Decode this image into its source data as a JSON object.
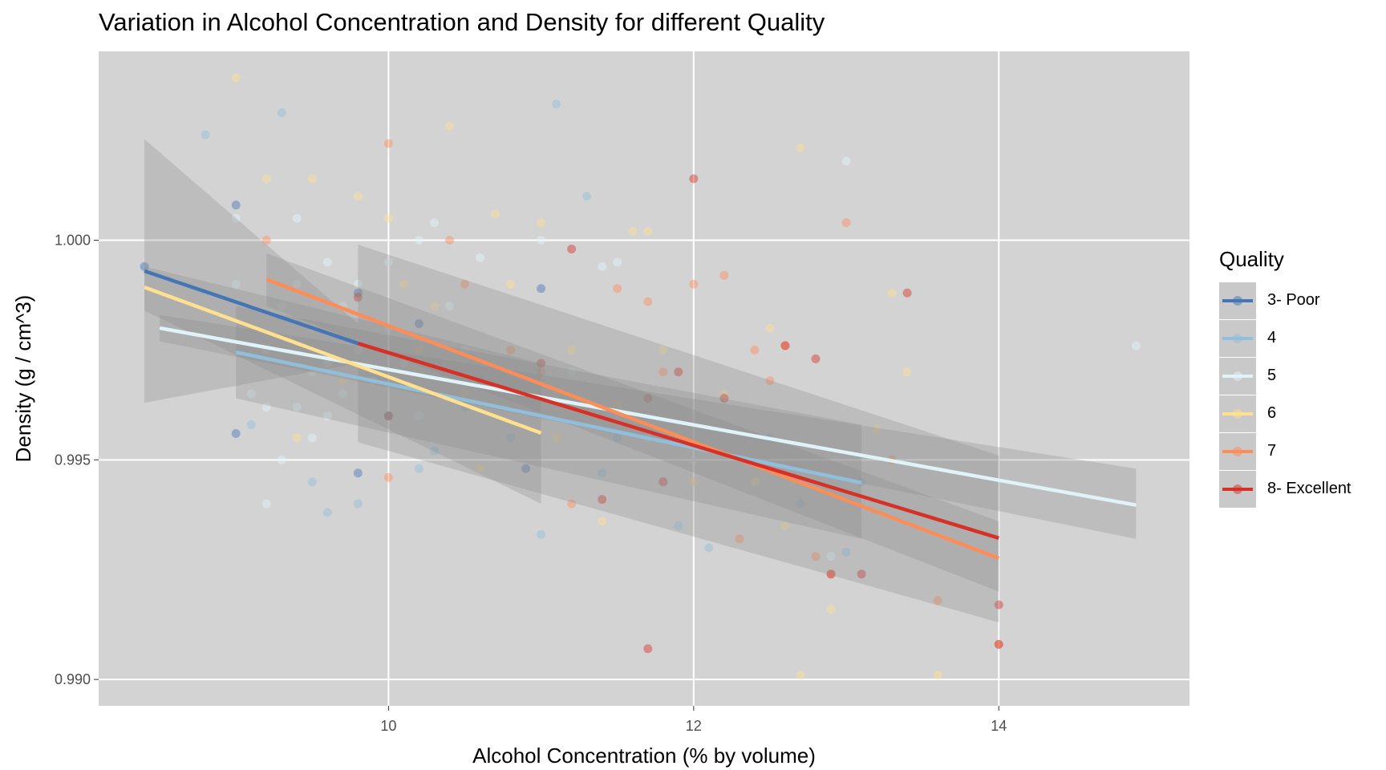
{
  "chart_data": {
    "type": "scatter",
    "title": "Variation in Alcohol Concentration and Density for different Quality",
    "xlabel": "Alcohol Concentration (% by volume)",
    "ylabel": "Density (g / cm^3)",
    "xlim": [
      8.1,
      15.25
    ],
    "ylim": [
      0.9894,
      1.0043
    ],
    "x_ticks": [
      10,
      12,
      14
    ],
    "x_tick_labels": [
      "10",
      "12",
      "14"
    ],
    "y_ticks": [
      0.99,
      0.995,
      1.0
    ],
    "y_tick_labels": [
      "0.990",
      "0.995",
      "1.000"
    ],
    "grid": true,
    "legend": {
      "title": "Quality",
      "position": "right"
    },
    "series": [
      {
        "name": "3- Poor",
        "color": "#4575b4",
        "points": [
          [
            8.4,
            0.9994
          ],
          [
            9.0,
            1.0008
          ],
          [
            9.0,
            0.9956
          ],
          [
            9.8,
            0.9947
          ],
          [
            10.0,
            0.996
          ],
          [
            10.9,
            0.9948
          ],
          [
            11.0,
            0.9989
          ],
          [
            9.8,
            0.9988
          ],
          [
            10.2,
            0.9981
          ]
        ],
        "fit": {
          "x": [
            8.4,
            9.8
          ],
          "y": [
            0.9993,
            0.99765
          ]
        },
        "band": {
          "x": [
            8.4,
            9.8
          ],
          "lower": [
            0.9963,
            0.9972
          ],
          "upper": [
            1.0023,
            0.9981
          ]
        }
      },
      {
        "name": "4",
        "color": "#91bfdb",
        "points": [
          [
            8.8,
            1.0024
          ],
          [
            9.1,
            0.9958
          ],
          [
            9.3,
            1.0029
          ],
          [
            9.5,
            0.9945
          ],
          [
            9.8,
            0.994
          ],
          [
            10.0,
            0.996
          ],
          [
            10.2,
            0.9948
          ],
          [
            10.5,
            0.9962
          ],
          [
            10.8,
            0.9955
          ],
          [
            11.0,
            0.9933
          ],
          [
            11.1,
            1.0031
          ],
          [
            11.3,
            1.001
          ],
          [
            11.4,
            0.9947
          ],
          [
            11.5,
            0.9955
          ],
          [
            11.9,
            0.9935
          ],
          [
            12.1,
            0.993
          ],
          [
            12.5,
            0.9955
          ],
          [
            12.7,
            0.994
          ],
          [
            13.0,
            0.9929
          ],
          [
            13.1,
            0.9945
          ],
          [
            10.3,
            0.9952
          ],
          [
            9.6,
            0.9938
          ],
          [
            10.6,
            0.9968
          ]
        ],
        "fit": {
          "x": [
            9.0,
            13.1
          ],
          "y": [
            0.99745,
            0.99448
          ]
        },
        "band": {
          "x": [
            9.0,
            13.1
          ],
          "lower": [
            0.9964,
            0.9932
          ],
          "upper": [
            0.9985,
            0.9958
          ]
        }
      },
      {
        "name": "5",
        "color": "#e0f3f8",
        "points": [
          [
            9.0,
            1.0005
          ],
          [
            9.1,
            0.9965
          ],
          [
            9.2,
            0.9962
          ],
          [
            9.2,
            0.9975
          ],
          [
            9.3,
            0.995
          ],
          [
            9.3,
            0.9985
          ],
          [
            9.4,
            0.9962
          ],
          [
            9.4,
            0.999
          ],
          [
            9.4,
            1.0005
          ],
          [
            9.5,
            0.9955
          ],
          [
            9.5,
            0.997
          ],
          [
            9.5,
            0.998
          ],
          [
            9.6,
            0.996
          ],
          [
            9.6,
            0.9972
          ],
          [
            9.6,
            0.9995
          ],
          [
            9.7,
            0.9965
          ],
          [
            9.7,
            0.9985
          ],
          [
            9.8,
            0.9975
          ],
          [
            9.8,
            0.999
          ],
          [
            9.9,
            0.9968
          ],
          [
            10.0,
            0.998
          ],
          [
            10.0,
            0.9995
          ],
          [
            10.1,
            0.9972
          ],
          [
            10.2,
            0.996
          ],
          [
            10.2,
            1.0
          ],
          [
            10.3,
            1.0004
          ],
          [
            10.4,
            0.9985
          ],
          [
            10.5,
            0.9975
          ],
          [
            10.6,
            0.9996
          ],
          [
            10.8,
            0.9965
          ],
          [
            11.0,
            1.0
          ],
          [
            11.2,
            0.997
          ],
          [
            11.4,
            0.9994
          ],
          [
            11.5,
            0.9995
          ],
          [
            11.7,
            0.9955
          ],
          [
            12.0,
            0.995
          ],
          [
            12.4,
            0.9945
          ],
          [
            12.9,
            0.9928
          ],
          [
            13.0,
            1.0018
          ],
          [
            14.9,
            0.9976
          ],
          [
            9.0,
            0.999
          ],
          [
            9.2,
            0.994
          ]
        ],
        "fit": {
          "x": [
            8.5,
            14.9
          ],
          "y": [
            0.998,
            0.99397
          ]
        },
        "band": {
          "x": [
            8.5,
            14.9
          ],
          "lower": [
            0.9977,
            0.9932
          ],
          "upper": [
            0.9983,
            0.9948
          ]
        }
      },
      {
        "name": "6",
        "color": "#fee090",
        "points": [
          [
            9.0,
            1.0037
          ],
          [
            9.2,
            1.0014
          ],
          [
            9.4,
            0.9955
          ],
          [
            9.5,
            1.0014
          ],
          [
            9.8,
            1.001
          ],
          [
            10.0,
            1.0005
          ],
          [
            10.1,
            0.999
          ],
          [
            10.2,
            0.9975
          ],
          [
            10.4,
            1.0026
          ],
          [
            10.5,
            0.9965
          ],
          [
            10.6,
            0.9948
          ],
          [
            10.7,
            1.0006
          ],
          [
            10.8,
            0.999
          ],
          [
            11.0,
            1.0004
          ],
          [
            11.2,
            0.9975
          ],
          [
            11.5,
            0.9962
          ],
          [
            11.6,
            1.0002
          ],
          [
            11.7,
            1.0002
          ],
          [
            11.8,
            0.9975
          ],
          [
            12.0,
            0.9945
          ],
          [
            12.2,
            0.9965
          ],
          [
            12.4,
            0.9945
          ],
          [
            12.5,
            0.998
          ],
          [
            12.6,
            0.9935
          ],
          [
            12.7,
            1.0021
          ],
          [
            12.9,
            0.9916
          ],
          [
            13.2,
            0.9957
          ],
          [
            13.3,
            0.9988
          ],
          [
            13.4,
            0.997
          ],
          [
            13.6,
            0.9901
          ],
          [
            12.7,
            0.9901
          ],
          [
            10.3,
            0.9985
          ],
          [
            9.7,
            0.9968
          ],
          [
            11.1,
            0.9955
          ],
          [
            11.4,
            0.9936
          ]
        ],
        "fit": {
          "x": [
            8.4,
            11.0
          ],
          "y": [
            0.99893,
            0.99561
          ]
        },
        "band": {
          "x": [
            8.4,
            11.0
          ],
          "lower": [
            0.9984,
            0.994
          ],
          "upper": [
            0.9994,
            0.9972
          ]
        }
      },
      {
        "name": "7",
        "color": "#fc8d59",
        "points": [
          [
            9.2,
            1.0
          ],
          [
            10.0,
            1.0022
          ],
          [
            10.4,
            1.0
          ],
          [
            10.5,
            0.999
          ],
          [
            10.8,
            0.9975
          ],
          [
            11.0,
            0.997
          ],
          [
            11.3,
            0.9962
          ],
          [
            11.5,
            0.9989
          ],
          [
            11.7,
            0.9986
          ],
          [
            11.8,
            0.997
          ],
          [
            12.0,
            0.999
          ],
          [
            12.2,
            0.9992
          ],
          [
            12.4,
            0.9975
          ],
          [
            12.5,
            0.9968
          ],
          [
            12.6,
            0.9976
          ],
          [
            12.8,
            0.9928
          ],
          [
            12.9,
            0.9924
          ],
          [
            13.0,
            1.0004
          ],
          [
            13.3,
            0.995
          ],
          [
            13.6,
            0.9918
          ],
          [
            14.0,
            0.9908
          ],
          [
            11.2,
            0.994
          ],
          [
            12.3,
            0.9932
          ],
          [
            10.0,
            0.9946
          ]
        ],
        "fit": {
          "x": [
            9.2,
            14.0
          ],
          "y": [
            0.99911,
            0.99276
          ]
        },
        "band": {
          "x": [
            9.2,
            14.0
          ],
          "lower": [
            0.9985,
            0.992
          ],
          "upper": [
            0.9997,
            0.9936
          ]
        }
      },
      {
        "name": "8- Excellent",
        "color": "#d73027",
        "points": [
          [
            9.8,
            0.9987
          ],
          [
            10.0,
            0.996
          ],
          [
            11.0,
            0.9972
          ],
          [
            11.2,
            0.9998
          ],
          [
            11.4,
            0.9941
          ],
          [
            11.7,
            0.9964
          ],
          [
            11.7,
            0.9907
          ],
          [
            11.8,
            0.9945
          ],
          [
            11.9,
            0.997
          ],
          [
            12.0,
            1.0014
          ],
          [
            12.2,
            0.9964
          ],
          [
            12.6,
            0.9976
          ],
          [
            12.8,
            0.9973
          ],
          [
            12.9,
            0.9924
          ],
          [
            13.1,
            0.9924
          ],
          [
            13.4,
            0.9988
          ],
          [
            14.0,
            0.9917
          ],
          [
            14.0,
            0.9908
          ]
        ],
        "fit": {
          "x": [
            9.8,
            14.0
          ],
          "y": [
            0.99765,
            0.99322
          ]
        },
        "band": {
          "x": [
            9.8,
            14.0
          ],
          "lower": [
            0.9954,
            0.9913
          ],
          "upper": [
            0.9999,
            0.9951
          ]
        }
      }
    ]
  }
}
